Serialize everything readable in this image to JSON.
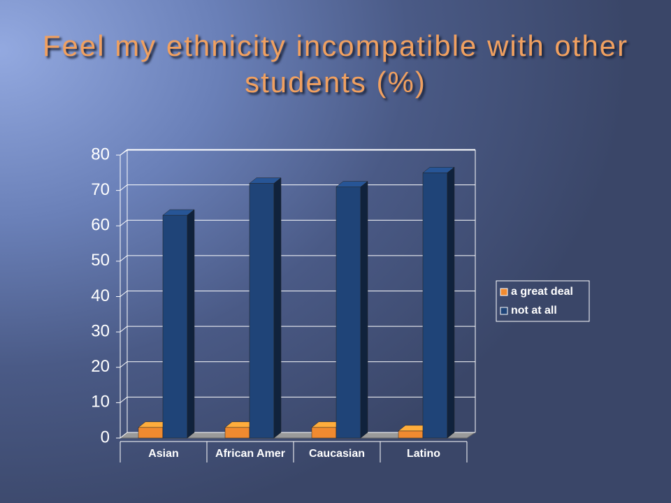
{
  "chart_data": {
    "type": "bar3d",
    "title": "Feel my ethnicity incompatible with other students (%)",
    "categories": [
      "Asian",
      "African Amer",
      "Caucasian",
      "Latino"
    ],
    "series": [
      {
        "name": "a great deal",
        "color": "#f08a30",
        "values": [
          3,
          3,
          3,
          2
        ]
      },
      {
        "name": "not at all",
        "color": "#1f4478",
        "values": [
          63,
          72,
          71,
          75
        ]
      }
    ],
    "ylim": [
      0,
      80
    ],
    "yticks": [
      0,
      10,
      20,
      30,
      40,
      50,
      60,
      70,
      80
    ],
    "grid": true,
    "legend": "right"
  }
}
